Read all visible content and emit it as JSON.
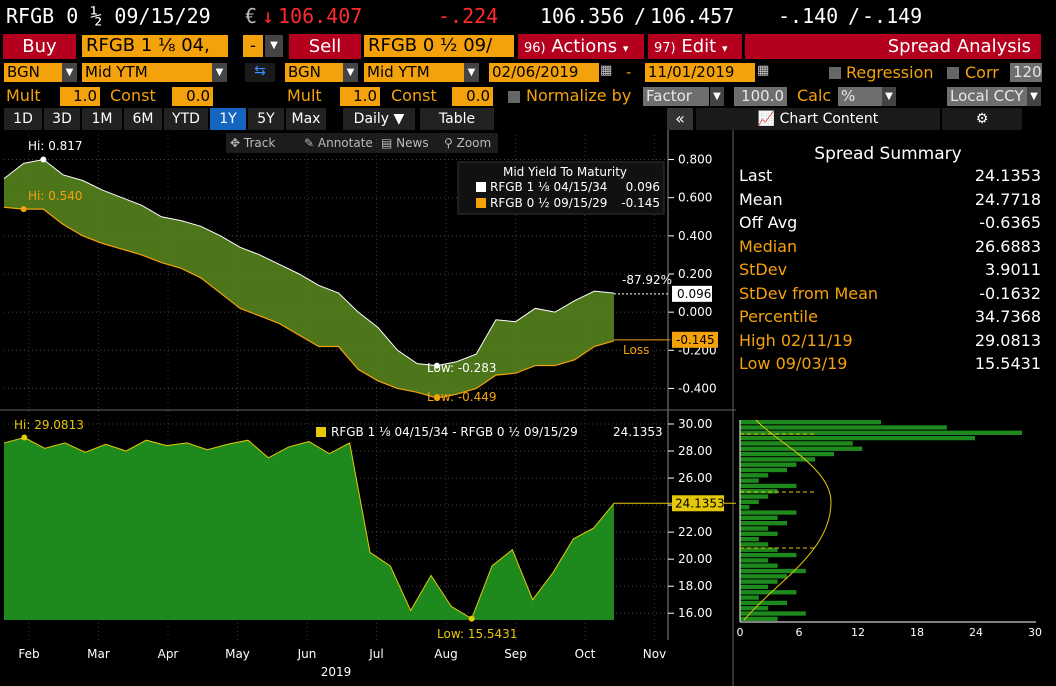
{
  "quote": {
    "ticker": "RFGB 0 ½ 09/15/29",
    "currency_mark": "€",
    "arrow": "↓",
    "last": "106.407",
    "change": "-.224",
    "bid": "106.356",
    "sep": "/",
    "ask": "106.457",
    "yld_bid": "-.140",
    "yld_ask": "-.149"
  },
  "toolbar": {
    "buy": "Buy",
    "buy_security": "RFGB 1 ⅛ 04,",
    "minus": "-",
    "sell": "Sell",
    "sell_security": "RFGB 0 ½ 09/",
    "actions_num": "96)",
    "actions": "Actions",
    "edit_num": "97)",
    "edit": "Edit",
    "title": "Spread Analysis"
  },
  "params": {
    "left_source": "BGN",
    "left_field": "Mid YTM",
    "right_source": "BGN",
    "right_field": "Mid YTM",
    "date_from": "02/06/2019",
    "date_sep": "-",
    "date_to": "11/01/2019",
    "regression": "Regression",
    "corr": "Corr",
    "corr_value": "120",
    "mult_label": "Mult",
    "mult_left": "1.0",
    "const_label": "Const",
    "const_left": "0.0",
    "mult_right": "1.0",
    "const_right": "0.0",
    "normalize": "Normalize by",
    "normalize_value": "Factor",
    "normalize_num": "100.0",
    "calc": "Calc",
    "calc_value": "%",
    "ccy": "Local CCY"
  },
  "periods": [
    "1D",
    "3D",
    "1M",
    "6M",
    "YTD",
    "1Y",
    "5Y",
    "Max"
  ],
  "selected_period": "1Y",
  "freq": "Daily",
  "table": "Table",
  "collapse": "«",
  "chart_content": "Chart Content",
  "tools": {
    "track": "Track",
    "annotate": "Annotate",
    "news": "News",
    "zoom": "Zoom"
  },
  "summary": {
    "title": "Spread Summary",
    "rows": [
      {
        "label": "Last",
        "value": "24.1353",
        "color": "#ffffff"
      },
      {
        "label": "Mean",
        "value": "24.7718",
        "color": "#ffffff"
      },
      {
        "label": "Off Avg",
        "value": "-0.6365",
        "color": "#ffffff"
      },
      {
        "label": "Median",
        "value": "26.6883",
        "color": "#f4a20c"
      },
      {
        "label": "StDev",
        "value": "3.9011",
        "color": "#f4a20c"
      },
      {
        "label": "StDev from Mean",
        "value": "-0.1632",
        "color": "#f4a20c"
      },
      {
        "label": "Percentile",
        "value": "34.7368",
        "color": "#f4a20c"
      },
      {
        "label": "High 02/11/19",
        "value": "29.0813",
        "color": "#f4a20c"
      },
      {
        "label": "Low 09/03/19",
        "value": "15.5431",
        "color": "#f4a20c"
      }
    ]
  },
  "colors": {
    "white_series": "#ffffff",
    "orange_series": "#f4a20c",
    "band": "#5a8a1e",
    "spread_fill": "#1e8a1e",
    "accent": "#b4001e"
  },
  "chart_data": [
    {
      "type": "area",
      "title": "Mid Yield To Maturity",
      "x_axis": [
        "Feb",
        "Mar",
        "Apr",
        "May",
        "Jun",
        "Jul",
        "Aug",
        "Sep",
        "Oct",
        "Nov"
      ],
      "x_year": "2019",
      "yticks": [
        "0.800",
        "0.600",
        "0.400",
        "0.200",
        "0.000",
        "-0.200",
        "-0.400"
      ],
      "ylim": [
        -0.45,
        0.85
      ],
      "series": [
        {
          "name": "RFGB 1 ⅛ 04/15/34",
          "last": "0.096",
          "values": [
            0.7,
            0.78,
            0.8,
            0.72,
            0.69,
            0.64,
            0.6,
            0.56,
            0.5,
            0.48,
            0.45,
            0.4,
            0.34,
            0.3,
            0.25,
            0.2,
            0.14,
            0.1,
            0.0,
            -0.08,
            -0.2,
            -0.27,
            -0.28,
            -0.26,
            -0.22,
            -0.04,
            -0.05,
            0.02,
            0.0,
            0.06,
            0.11,
            0.1
          ]
        },
        {
          "name": "RFGB 0 ½ 09/15/29",
          "last": "-0.145",
          "values": [
            0.55,
            0.54,
            0.54,
            0.46,
            0.4,
            0.36,
            0.33,
            0.3,
            0.26,
            0.23,
            0.18,
            0.1,
            0.02,
            -0.02,
            -0.06,
            -0.12,
            -0.18,
            -0.18,
            -0.3,
            -0.36,
            -0.4,
            -0.42,
            -0.45,
            -0.43,
            -0.4,
            -0.33,
            -0.32,
            -0.28,
            -0.28,
            -0.25,
            -0.18,
            -0.15
          ]
        }
      ],
      "hi_white": "Hi: 0.817",
      "hi_orange": "Hi: 0.540",
      "low_white": "Low: -0.283",
      "low_orange": "Low: -0.449",
      "pct_label": "-87.92%",
      "loss_label": "Loss",
      "legend_white_value": "0.096",
      "legend_orange_value": "-0.145"
    },
    {
      "type": "area",
      "title": "RFGB 1 ⅛ 04/15/34 - RFGB 0 ½ 09/15/29",
      "last": "24.1353",
      "yticks": [
        "30.00",
        "28.00",
        "26.00",
        "24.00",
        "22.00",
        "20.00",
        "18.00",
        "16.00"
      ],
      "ylim": [
        15.5,
        30.0
      ],
      "values": [
        28.6,
        29.0,
        28.2,
        28.6,
        27.9,
        28.5,
        28.0,
        28.8,
        28.4,
        28.6,
        28.1,
        28.5,
        28.8,
        27.5,
        28.3,
        28.7,
        27.8,
        28.6,
        20.5,
        19.5,
        16.2,
        18.8,
        16.5,
        15.6,
        19.5,
        20.7,
        17.0,
        19.0,
        21.5,
        22.3,
        24.14
      ],
      "hi_label": "Hi: 29.0813",
      "low_label": "Low: 15.5431",
      "histogram_xticks": [
        "0",
        "6",
        "12",
        "18",
        "24",
        "30"
      ]
    }
  ]
}
